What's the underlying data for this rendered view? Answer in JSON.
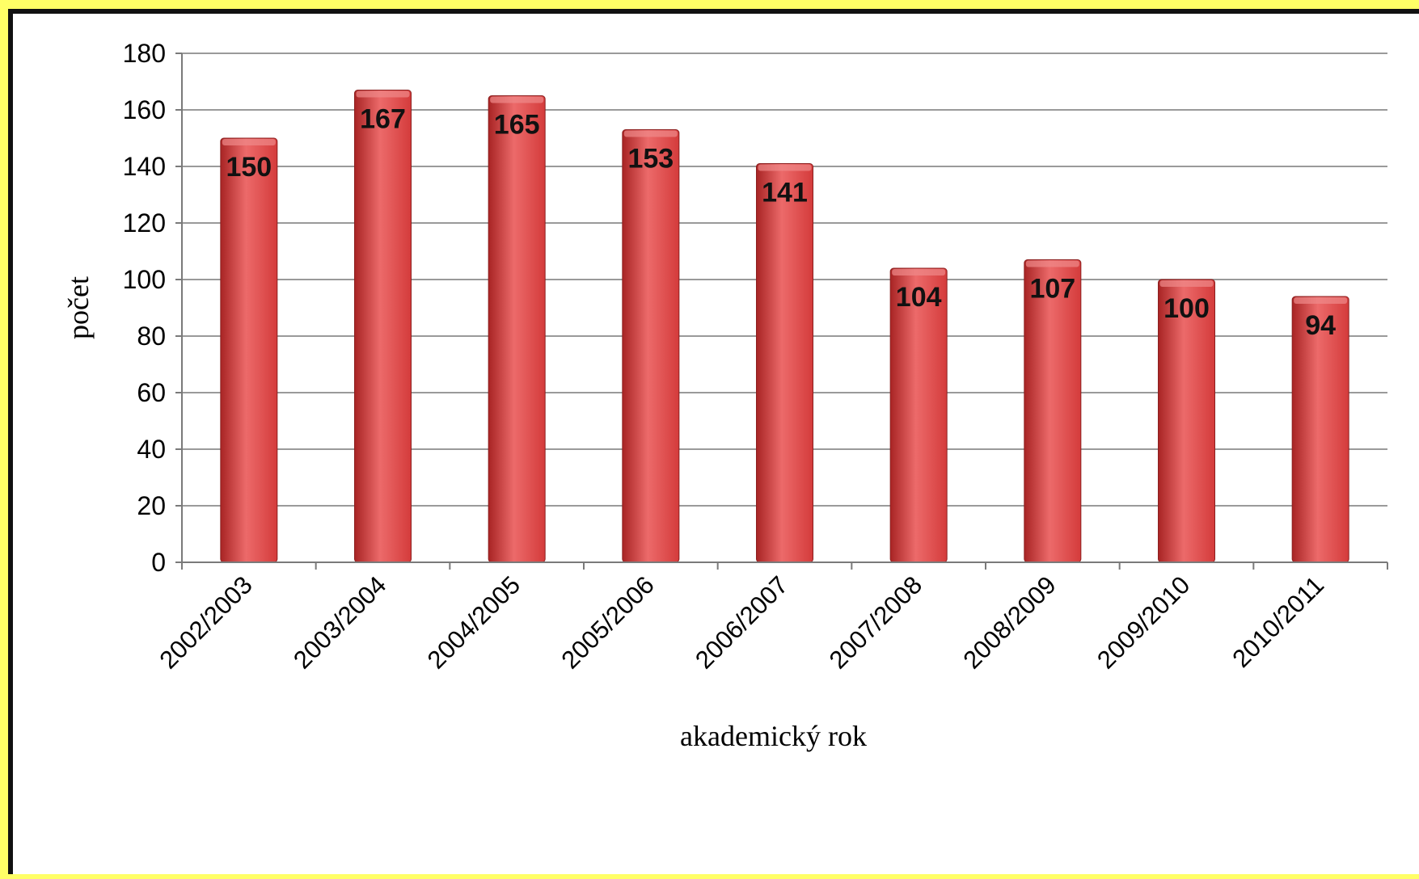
{
  "chart_data": {
    "type": "bar",
    "title": "",
    "xlabel": "akademický rok",
    "ylabel": "počet",
    "categories": [
      "2002/2003",
      "2003/2004",
      "2004/2005",
      "2005/2006",
      "2006/2007",
      "2007/2008",
      "2008/2009",
      "2009/2010",
      "2010/2011"
    ],
    "values": [
      150,
      167,
      165,
      153,
      141,
      104,
      107,
      100,
      94
    ],
    "ylim": [
      0,
      180
    ],
    "yticks": [
      0,
      20,
      40,
      60,
      80,
      100,
      120,
      140,
      160,
      180
    ],
    "grid": true,
    "legend": "none",
    "data_labels": true
  },
  "colors": {
    "bar": "#d43b3b",
    "bar_dark": "#a82424",
    "bar_light": "#ec6a6a",
    "frame_outer": "#ffff66",
    "frame_border": "#111111",
    "gridline": "#9a9a9a"
  }
}
